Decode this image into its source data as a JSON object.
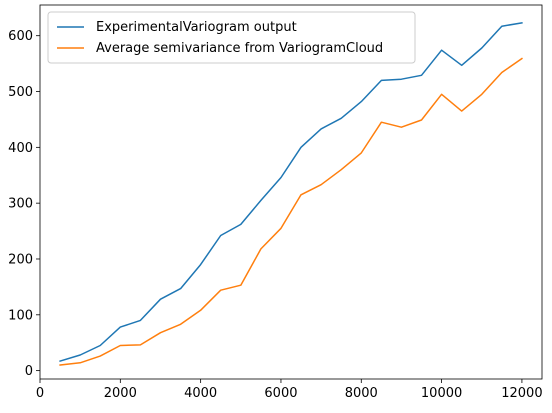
{
  "chart_data": {
    "type": "line",
    "title": "",
    "xlabel": "",
    "ylabel": "",
    "xlim": [
      0,
      12500
    ],
    "ylim": [
      -15,
      655
    ],
    "xticks": [
      0,
      2000,
      4000,
      6000,
      8000,
      10000,
      12000
    ],
    "yticks": [
      0,
      100,
      200,
      300,
      400,
      500,
      600
    ],
    "grid": false,
    "legend_position": "top-left",
    "x": [
      500,
      1000,
      1500,
      2000,
      2500,
      3000,
      3500,
      4000,
      4500,
      5000,
      5500,
      6000,
      6500,
      7000,
      7500,
      8000,
      8500,
      9000,
      9500,
      10000,
      10500,
      11000,
      11500,
      12000
    ],
    "series": [
      {
        "name": "ExperimentalVariogram output",
        "color": "#1f77b4",
        "values": [
          17,
          28,
          45,
          78,
          90,
          128,
          147,
          190,
          242,
          262,
          305,
          346,
          400,
          433,
          452,
          482,
          520,
          522,
          529,
          574,
          547,
          578,
          617,
          623
        ]
      },
      {
        "name": "Average semivariance from VariogramCloud",
        "color": "#ff7f0e",
        "values": [
          10,
          14,
          26,
          45,
          46,
          68,
          83,
          108,
          144,
          153,
          218,
          255,
          315,
          333,
          360,
          390,
          445,
          436,
          449,
          495,
          465,
          495,
          534,
          559
        ]
      }
    ]
  }
}
